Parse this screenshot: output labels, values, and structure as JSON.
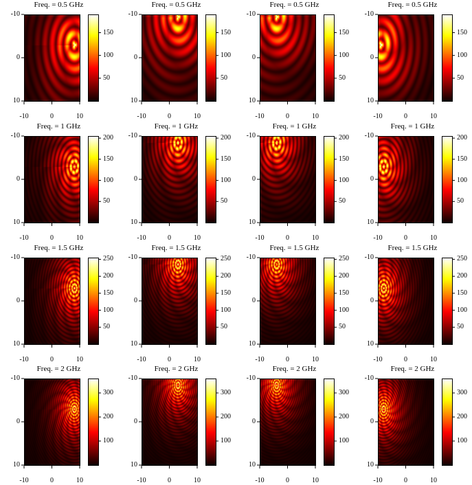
{
  "grid": {
    "rows": 4,
    "cols": 4
  },
  "colormap": "hot",
  "chart_data": [
    {
      "type": "heatmap",
      "title": "Freq. = 0.5 GHz",
      "source_x": 8,
      "source_y": -3,
      "freq_ghz": 0.5,
      "max": 190,
      "cbar_ticks": [
        50,
        100,
        150
      ],
      "xticks": [
        -10,
        0,
        10
      ],
      "yticks": [
        -10,
        0,
        10
      ],
      "xlim": [
        -10,
        10
      ],
      "ylim": [
        -10,
        10
      ],
      "y_inverted": true,
      "colorbar_labels": [
        "50",
        "100",
        "150"
      ]
    },
    {
      "type": "heatmap",
      "title": "Freq. = 0.5 GHz",
      "source_x": 3,
      "source_y": -9.5,
      "freq_ghz": 0.5,
      "max": 190,
      "cbar_ticks": [
        50,
        100,
        150
      ],
      "xticks": [
        -10,
        0,
        10
      ],
      "yticks": [
        -10,
        0,
        10
      ],
      "xlim": [
        -10,
        10
      ],
      "ylim": [
        -10,
        10
      ],
      "y_inverted": true,
      "colorbar_labels": [
        "50",
        "100",
        "150"
      ]
    },
    {
      "type": "heatmap",
      "title": "Freq. = 0.5 GHz",
      "source_x": -4,
      "source_y": -9.5,
      "freq_ghz": 0.5,
      "max": 190,
      "cbar_ticks": [
        50,
        100,
        150
      ],
      "xticks": [
        -10,
        0,
        10
      ],
      "yticks": [
        -10,
        0,
        10
      ],
      "xlim": [
        -10,
        10
      ],
      "ylim": [
        -10,
        10
      ],
      "y_inverted": true,
      "colorbar_labels": [
        "50",
        "100",
        "150"
      ]
    },
    {
      "type": "heatmap",
      "title": "Freq. = 0.5 GHz",
      "source_x": -9,
      "source_y": -3,
      "freq_ghz": 0.5,
      "max": 190,
      "cbar_ticks": [
        50,
        100,
        150
      ],
      "xticks": [
        -10,
        0,
        10
      ],
      "yticks": [
        -10,
        0,
        10
      ],
      "xlim": [
        -10,
        10
      ],
      "ylim": [
        -10,
        10
      ],
      "y_inverted": true,
      "colorbar_labels": [
        "50",
        "100",
        "150"
      ]
    },
    {
      "type": "heatmap",
      "title": "Freq. = 1 GHz",
      "source_x": 8,
      "source_y": -3,
      "freq_ghz": 1,
      "max": 205,
      "cbar_ticks": [
        50,
        100,
        150,
        200
      ],
      "xticks": [
        -10,
        0,
        10
      ],
      "yticks": [
        -10,
        0,
        10
      ],
      "xlim": [
        -10,
        10
      ],
      "ylim": [
        -10,
        10
      ],
      "y_inverted": true,
      "colorbar_labels": [
        "50",
        "100",
        "150",
        "200"
      ]
    },
    {
      "type": "heatmap",
      "title": "Freq. = 1 GHz",
      "source_x": 3,
      "source_y": -8.5,
      "freq_ghz": 1,
      "max": 205,
      "cbar_ticks": [
        50,
        100,
        150,
        200
      ],
      "xticks": [
        -10,
        0,
        10
      ],
      "yticks": [
        -10,
        0,
        10
      ],
      "xlim": [
        -10,
        10
      ],
      "ylim": [
        -10,
        10
      ],
      "y_inverted": true,
      "colorbar_labels": [
        "50",
        "100",
        "150",
        "200"
      ]
    },
    {
      "type": "heatmap",
      "title": "Freq. = 1 GHz",
      "source_x": -4,
      "source_y": -8.5,
      "freq_ghz": 1,
      "max": 205,
      "cbar_ticks": [
        50,
        100,
        150,
        200
      ],
      "xticks": [
        -10,
        0,
        10
      ],
      "yticks": [
        -10,
        0,
        10
      ],
      "xlim": [
        -10,
        10
      ],
      "ylim": [
        -10,
        10
      ],
      "y_inverted": true,
      "colorbar_labels": [
        "50",
        "100",
        "150",
        "200"
      ]
    },
    {
      "type": "heatmap",
      "title": "Freq. = 1 GHz",
      "source_x": -8,
      "source_y": -3,
      "freq_ghz": 1,
      "max": 205,
      "cbar_ticks": [
        50,
        100,
        150,
        200
      ],
      "xticks": [
        -10,
        0,
        10
      ],
      "yticks": [
        -10,
        0,
        10
      ],
      "xlim": [
        -10,
        10
      ],
      "ylim": [
        -10,
        10
      ],
      "y_inverted": true,
      "colorbar_labels": [
        "50",
        "100",
        "150",
        "200"
      ]
    },
    {
      "type": "heatmap",
      "title": "Freq. = 1.5 GHz",
      "source_x": 8,
      "source_y": -3,
      "freq_ghz": 1.5,
      "max": 255,
      "cbar_ticks": [
        50,
        100,
        150,
        200,
        250
      ],
      "xticks": [
        -10,
        0,
        10
      ],
      "yticks": [
        -10,
        0,
        10
      ],
      "xlim": [
        -10,
        10
      ],
      "ylim": [
        -10,
        10
      ],
      "y_inverted": true,
      "colorbar_labels": [
        "50",
        "100",
        "150",
        "200",
        "250"
      ]
    },
    {
      "type": "heatmap",
      "title": "Freq. = 1.5 GHz",
      "source_x": 3,
      "source_y": -8.5,
      "freq_ghz": 1.5,
      "max": 255,
      "cbar_ticks": [
        50,
        100,
        150,
        200,
        250
      ],
      "xticks": [
        -10,
        0,
        10
      ],
      "yticks": [
        -10,
        0,
        10
      ],
      "xlim": [
        -10,
        10
      ],
      "ylim": [
        -10,
        10
      ],
      "y_inverted": true,
      "colorbar_labels": [
        "50",
        "100",
        "150",
        "200",
        "250"
      ]
    },
    {
      "type": "heatmap",
      "title": "Freq. = 1.5 GHz",
      "source_x": -4,
      "source_y": -8.5,
      "freq_ghz": 1.5,
      "max": 255,
      "cbar_ticks": [
        50,
        100,
        150,
        200,
        250
      ],
      "xticks": [
        -10,
        0,
        10
      ],
      "yticks": [
        -10,
        0,
        10
      ],
      "xlim": [
        -10,
        10
      ],
      "ylim": [
        -10,
        10
      ],
      "y_inverted": true,
      "colorbar_labels": [
        "50",
        "100",
        "150",
        "200",
        "250"
      ]
    },
    {
      "type": "heatmap",
      "title": "Freq. = 1.5 GHz",
      "source_x": -8,
      "source_y": -3,
      "freq_ghz": 1.5,
      "max": 255,
      "cbar_ticks": [
        50,
        100,
        150,
        200,
        250
      ],
      "xticks": [
        -10,
        0,
        10
      ],
      "yticks": [
        -10,
        0,
        10
      ],
      "xlim": [
        -10,
        10
      ],
      "ylim": [
        -10,
        10
      ],
      "y_inverted": true,
      "colorbar_labels": [
        "50",
        "100",
        "150",
        "200",
        "250"
      ]
    },
    {
      "type": "heatmap",
      "title": "Freq. = 2 GHz",
      "source_x": 8,
      "source_y": -3,
      "freq_ghz": 2,
      "max": 360,
      "cbar_ticks": [
        100,
        200,
        300
      ],
      "xticks": [
        -10,
        0,
        10
      ],
      "yticks": [
        -10,
        0,
        10
      ],
      "xlim": [
        -10,
        10
      ],
      "ylim": [
        -10,
        10
      ],
      "y_inverted": true,
      "colorbar_labels": [
        "100",
        "200",
        "300"
      ]
    },
    {
      "type": "heatmap",
      "title": "Freq. = 2 GHz",
      "source_x": 3,
      "source_y": -8.5,
      "freq_ghz": 2,
      "max": 360,
      "cbar_ticks": [
        100,
        200,
        300
      ],
      "xticks": [
        -10,
        0,
        10
      ],
      "yticks": [
        -10,
        0,
        10
      ],
      "xlim": [
        -10,
        10
      ],
      "ylim": [
        -10,
        10
      ],
      "y_inverted": true,
      "colorbar_labels": [
        "100",
        "200",
        "300"
      ]
    },
    {
      "type": "heatmap",
      "title": "Freq. = 2 GHz",
      "source_x": -4,
      "source_y": -8.5,
      "freq_ghz": 2,
      "max": 360,
      "cbar_ticks": [
        100,
        200,
        300
      ],
      "xticks": [
        -10,
        0,
        10
      ],
      "yticks": [
        -10,
        0,
        10
      ],
      "xlim": [
        -10,
        10
      ],
      "ylim": [
        -10,
        10
      ],
      "y_inverted": true,
      "colorbar_labels": [
        "100",
        "200",
        "300"
      ]
    },
    {
      "type": "heatmap",
      "title": "Freq. = 2 GHz",
      "source_x": -8,
      "source_y": -3,
      "freq_ghz": 2,
      "max": 360,
      "cbar_ticks": [
        100,
        200,
        300
      ],
      "xticks": [
        -10,
        0,
        10
      ],
      "yticks": [
        -10,
        0,
        10
      ],
      "xlim": [
        -10,
        10
      ],
      "ylim": [
        -10,
        10
      ],
      "y_inverted": true,
      "colorbar_labels": [
        "100",
        "200",
        "300"
      ]
    }
  ]
}
